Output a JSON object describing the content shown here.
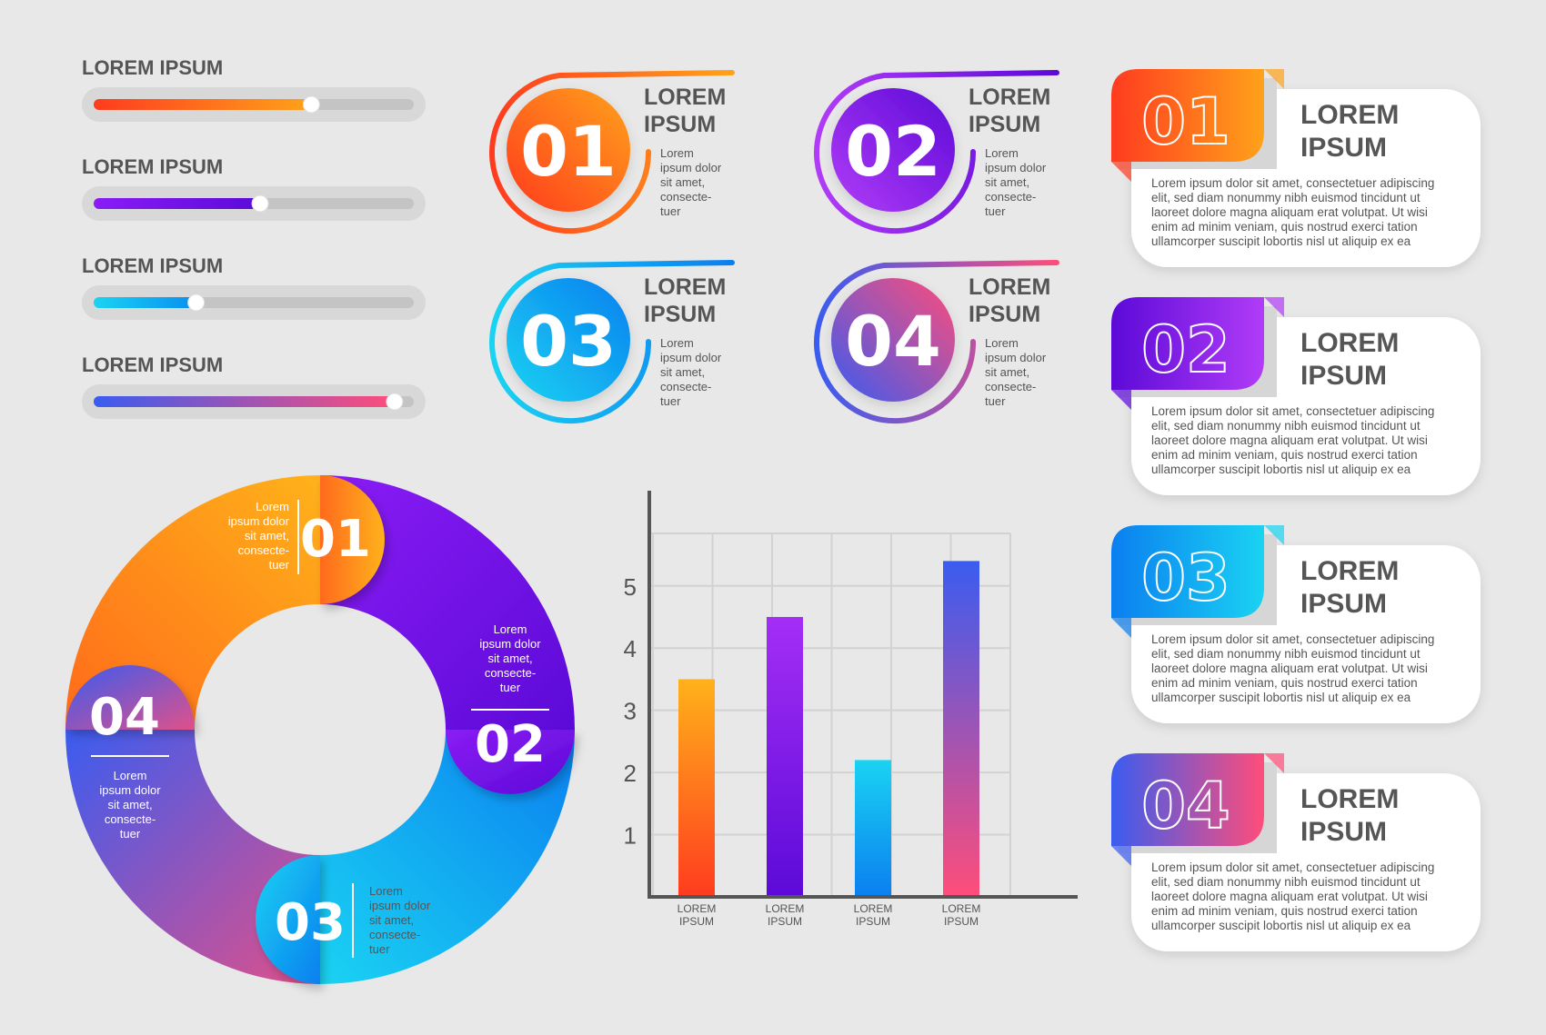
{
  "sliders": [
    {
      "label": "LOREM IPSUM",
      "value_fraction": 0.68,
      "color_from": "#ff3b1f",
      "color_to": "#ffa21a"
    },
    {
      "label": "LOREM IPSUM",
      "value_fraction": 0.52,
      "color_from": "#8a1cf5",
      "color_to": "#5c0ad8"
    },
    {
      "label": "LOREM IPSUM",
      "value_fraction": 0.32,
      "color_from": "#1ad3f2",
      "color_to": "#0a8ff0"
    },
    {
      "label": "LOREM IPSUM",
      "value_fraction": 0.94,
      "color_from": "#3a5cf0",
      "color_to": "#ff4d7a"
    }
  ],
  "badges": [
    {
      "number": "01",
      "title_line1": "LOREM",
      "title_line2": "IPSUM",
      "text_lines": [
        "Lorem",
        "ipsum dolor",
        "sit amet,",
        "consecte-",
        "tuer"
      ],
      "color_from": "#ff3b1f",
      "color_to": "#ffa21a"
    },
    {
      "number": "02",
      "title_line1": "LOREM",
      "title_line2": "IPSUM",
      "text_lines": [
        "Lorem",
        "ipsum dolor",
        "sit amet,",
        "consecte-",
        "tuer"
      ],
      "color_from": "#b13cf7",
      "color_to": "#5c0ad8"
    },
    {
      "number": "03",
      "title_line1": "LOREM",
      "title_line2": "IPSUM",
      "text_lines": [
        "Lorem",
        "ipsum dolor",
        "sit amet,",
        "consecte-",
        "tuer"
      ],
      "color_from": "#1ad3f2",
      "color_to": "#0a7ff0"
    },
    {
      "number": "04",
      "title_line1": "LOREM",
      "title_line2": "IPSUM",
      "text_lines": [
        "Lorem",
        "ipsum dolor",
        "sit amet,",
        "consecte-",
        "tuer"
      ],
      "color_from": "#3a5cf0",
      "color_to": "#ff4d7a"
    }
  ],
  "cards": [
    {
      "number": "01",
      "title_line1": "LOREM",
      "title_line2": "IPSUM",
      "body_lines": [
        "Lorem ipsum dolor sit amet, consectetuer adipiscing",
        "elit, sed diam nonummy nibh euismod tincidunt ut",
        "laoreet dolore magna aliquam erat volutpat. Ut wisi",
        "enim ad minim veniam, quis nostrud exerci tation",
        "ullamcorper suscipit lobortis nisl ut aliquip ex ea"
      ],
      "color_from": "#ff3b1f",
      "color_to": "#ffa21a"
    },
    {
      "number": "02",
      "title_line1": "LOREM",
      "title_line2": "IPSUM",
      "body_lines": [
        "Lorem ipsum dolor sit amet, consectetuer adipiscing",
        "elit, sed diam nonummy nibh euismod tincidunt ut",
        "laoreet dolore magna aliquam erat volutpat. Ut wisi",
        "enim ad minim veniam, quis nostrud exerci tation",
        "ullamcorper suscipit lobortis nisl ut aliquip ex ea"
      ],
      "color_from": "#5c0ad8",
      "color_to": "#b13cf7"
    },
    {
      "number": "03",
      "title_line1": "LOREM",
      "title_line2": "IPSUM",
      "body_lines": [
        "Lorem ipsum dolor sit amet, consectetuer adipiscing",
        "elit, sed diam nonummy nibh euismod tincidunt ut",
        "laoreet dolore magna aliquam erat volutpat. Ut wisi",
        "enim ad minim veniam, quis nostrud exerci tation",
        "ullamcorper suscipit lobortis nisl ut aliquip ex ea"
      ],
      "color_from": "#0a7ff0",
      "color_to": "#1ad3f2"
    },
    {
      "number": "04",
      "title_line1": "LOREM",
      "title_line2": "IPSUM",
      "body_lines": [
        "Lorem ipsum dolor sit amet, consectetuer adipiscing",
        "elit, sed diam nonummy nibh euismod tincidunt ut",
        "laoreet dolore magna aliquam erat volutpat. Ut wisi",
        "enim ad minim veniam, quis nostrud exerci tation",
        "ullamcorper suscipit lobortis nisl ut aliquip ex ea"
      ],
      "color_from": "#3a5cf0",
      "color_to": "#ff4d7a"
    }
  ],
  "donut": {
    "segments": [
      {
        "number": "01",
        "text_lines": [
          "Lorem",
          "ipsum dolor",
          "sit amet,",
          "consecte-",
          "tuer"
        ],
        "color_from": "#ff6a1a",
        "color_to": "#ffb21a"
      },
      {
        "number": "02",
        "text_lines": [
          "Lorem",
          "ipsum dolor",
          "sit amet,",
          "consecte-",
          "tuer"
        ],
        "color_from": "#8a1cf5",
        "color_to": "#5c0ad8"
      },
      {
        "number": "03",
        "text_lines": [
          "Lorem",
          "ipsum dolor",
          "sit amet,",
          "consecte-",
          "tuer"
        ],
        "color_from": "#1ad3f2",
        "color_to": "#0a7ff0"
      },
      {
        "number": "04",
        "text_lines": [
          "Lorem",
          "ipsum dolor",
          "sit amet,",
          "consecte-",
          "tuer"
        ],
        "color_from": "#3a5cf0",
        "color_to": "#e0508a"
      }
    ]
  },
  "chart_data": {
    "type": "bar",
    "categories": [
      "LOREM IPSUM",
      "LOREM IPSUM",
      "LOREM IPSUM",
      "LOREM IPSUM"
    ],
    "values": [
      3.5,
      4.5,
      2.2,
      5.4
    ],
    "yticks": [
      "1",
      "2",
      "3",
      "4",
      "5"
    ],
    "ylim": [
      0,
      5.8
    ],
    "grid": true,
    "bar_colors": [
      {
        "top": "#ffb21a",
        "bottom": "#ff3b1f"
      },
      {
        "top": "#a42ef5",
        "bottom": "#5c0ad8"
      },
      {
        "top": "#1ad3f2",
        "bottom": "#0a7ff0"
      },
      {
        "top": "#3a5cf0",
        "bottom": "#ff4d7a"
      }
    ],
    "title": "",
    "xlabel": "",
    "ylabel": ""
  }
}
